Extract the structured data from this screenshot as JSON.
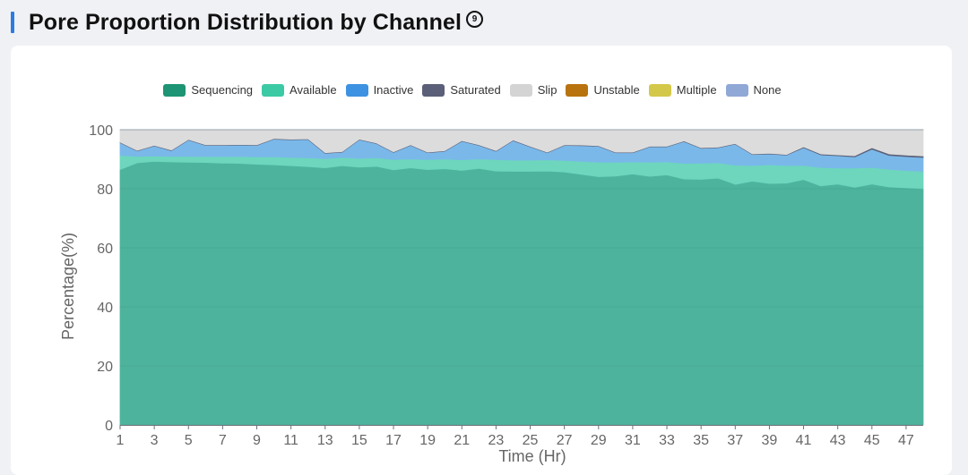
{
  "header": {
    "title": "Pore Proportion Distribution by Channel",
    "info_icon_text": "9"
  },
  "colors": {
    "Sequencing": "#4db39d",
    "Available": "#6dd6bd",
    "Inactive": "#7ab8ea",
    "Saturated": "#5b6078",
    "Slip": "#dcdcdc",
    "Unstable": "#b8730e",
    "Multiple": "#d4c84a",
    "None": "#90a8d6",
    "legend_Sequencing": "#1d9473",
    "legend_Available": "#3ccaa5",
    "legend_Inactive": "#3d92e2",
    "legend_Saturated": "#5b6078",
    "legend_Slip": "#d4d4d4",
    "legend_Unstable": "#b8730e",
    "legend_Multiple": "#d4c84a",
    "legend_None": "#90a8d6"
  },
  "chart_data": {
    "type": "area",
    "stacked": true,
    "title": "Pore Proportion Distribution by Channel",
    "xlabel": "Time (Hr)",
    "ylabel": "Percentage(%)",
    "ylim": [
      0,
      100
    ],
    "yticks": [
      0,
      20,
      40,
      60,
      80,
      100
    ],
    "xlim": [
      1,
      48
    ],
    "xticks": [
      1,
      3,
      5,
      7,
      9,
      11,
      13,
      15,
      17,
      19,
      21,
      23,
      25,
      27,
      29,
      31,
      33,
      35,
      37,
      39,
      41,
      43,
      45,
      47
    ],
    "x": [
      1,
      2,
      3,
      4,
      5,
      6,
      7,
      8,
      9,
      10,
      11,
      12,
      13,
      14,
      15,
      16,
      17,
      18,
      19,
      20,
      21,
      22,
      23,
      24,
      25,
      26,
      27,
      28,
      29,
      30,
      31,
      32,
      33,
      34,
      35,
      36,
      37,
      38,
      39,
      40,
      41,
      42,
      43,
      44,
      45,
      46,
      47,
      48
    ],
    "legend": [
      "Sequencing",
      "Available",
      "Inactive",
      "Saturated",
      "Slip",
      "Unstable",
      "Multiple",
      "None"
    ],
    "series": [
      {
        "name": "Sequencing",
        "values": [
          86.5,
          88.8,
          89.3,
          89.1,
          89.0,
          88.9,
          88.7,
          88.6,
          88.3,
          88.1,
          87.8,
          87.5,
          87.1,
          87.8,
          87.3,
          87.6,
          86.4,
          87.1,
          86.5,
          86.8,
          86.2,
          86.9,
          86.0,
          85.9,
          85.9,
          86.0,
          85.7,
          84.9,
          84.1,
          84.3,
          85.0,
          84.2,
          84.7,
          83.3,
          83.2,
          83.6,
          81.5,
          82.6,
          81.8,
          81.9,
          83.1,
          81.0,
          81.6,
          80.5,
          81.6,
          80.6,
          80.3,
          80.0
        ]
      },
      {
        "name": "Available",
        "values": [
          4.8,
          2.2,
          1.8,
          1.9,
          2.0,
          2.0,
          2.2,
          2.3,
          2.5,
          2.7,
          2.8,
          3.0,
          3.1,
          2.8,
          3.0,
          2.9,
          3.5,
          3.0,
          3.4,
          3.3,
          3.6,
          3.2,
          3.9,
          3.8,
          3.8,
          3.8,
          3.9,
          4.4,
          4.9,
          4.7,
          4.1,
          4.8,
          4.4,
          5.3,
          5.5,
          5.2,
          6.5,
          5.3,
          6.3,
          6.0,
          4.8,
          6.2,
          5.4,
          6.5,
          5.6,
          6.0,
          5.9,
          5.9
        ]
      },
      {
        "name": "Inactive",
        "values": [
          4.3,
          1.8,
          3.4,
          1.9,
          5.5,
          3.8,
          3.8,
          3.9,
          3.9,
          6.0,
          6.0,
          6.2,
          1.8,
          1.8,
          6.3,
          4.8,
          2.4,
          4.6,
          2.3,
          2.6,
          6.3,
          4.6,
          2.8,
          6.6,
          4.5,
          2.4,
          5.1,
          5.3,
          5.4,
          3.2,
          3.1,
          5.2,
          5.1,
          7.4,
          5.0,
          5.1,
          7.1,
          3.7,
          3.7,
          3.5,
          6.0,
          4.3,
          4.2,
          3.8,
          6.2,
          4.7,
          4.7,
          4.7
        ]
      },
      {
        "name": "Saturated",
        "values": [
          0.2,
          0.2,
          0.2,
          0.2,
          0.2,
          0.2,
          0.2,
          0.2,
          0.2,
          0.2,
          0.2,
          0.2,
          0.2,
          0.2,
          0.2,
          0.2,
          0.2,
          0.2,
          0.2,
          0.2,
          0.2,
          0.2,
          0.2,
          0.2,
          0.2,
          0.2,
          0.2,
          0.2,
          0.2,
          0.2,
          0.2,
          0.2,
          0.2,
          0.2,
          0.2,
          0.2,
          0.2,
          0.2,
          0.2,
          0.2,
          0.3,
          0.3,
          0.3,
          0.4,
          0.5,
          0.5,
          0.5,
          0.5
        ]
      },
      {
        "name": "Slip",
        "values": [
          4.2,
          7.0,
          5.3,
          6.9,
          3.3,
          5.1,
          5.1,
          5.0,
          5.1,
          3.0,
          3.2,
          3.1,
          7.8,
          7.4,
          3.2,
          4.5,
          7.5,
          5.1,
          7.6,
          7.1,
          3.7,
          5.1,
          7.1,
          3.5,
          5.6,
          7.6,
          5.1,
          5.2,
          5.4,
          7.6,
          7.6,
          5.6,
          5.6,
          3.8,
          6.1,
          5.9,
          4.7,
          8.2,
          8.0,
          8.4,
          5.8,
          8.2,
          8.5,
          8.8,
          6.1,
          8.2,
          8.6,
          8.9
        ]
      },
      {
        "name": "Unstable",
        "values": [
          0,
          0,
          0,
          0,
          0,
          0,
          0,
          0,
          0,
          0,
          0,
          0,
          0,
          0,
          0,
          0,
          0,
          0,
          0,
          0,
          0,
          0,
          0,
          0,
          0,
          0,
          0,
          0,
          0,
          0,
          0,
          0,
          0,
          0,
          0,
          0,
          0,
          0,
          0,
          0,
          0,
          0,
          0,
          0,
          0,
          0,
          0,
          0
        ]
      },
      {
        "name": "Multiple",
        "values": [
          0,
          0,
          0,
          0,
          0,
          0,
          0,
          0,
          0,
          0,
          0,
          0,
          0,
          0,
          0,
          0,
          0,
          0,
          0,
          0,
          0,
          0,
          0,
          0,
          0,
          0,
          0,
          0,
          0,
          0,
          0,
          0,
          0,
          0,
          0,
          0,
          0,
          0,
          0,
          0,
          0,
          0,
          0,
          0,
          0,
          0,
          0,
          0
        ]
      },
      {
        "name": "None",
        "values": [
          0,
          0,
          0,
          0,
          0,
          0,
          0,
          0,
          0,
          0,
          0,
          0,
          0,
          0,
          0,
          0,
          0,
          0,
          0,
          0,
          0,
          0,
          0,
          0,
          0,
          0,
          0,
          0,
          0,
          0,
          0,
          0,
          0,
          0,
          0,
          0,
          0,
          0,
          0,
          0,
          0,
          0,
          0,
          0,
          0,
          0,
          0,
          0
        ]
      }
    ]
  }
}
